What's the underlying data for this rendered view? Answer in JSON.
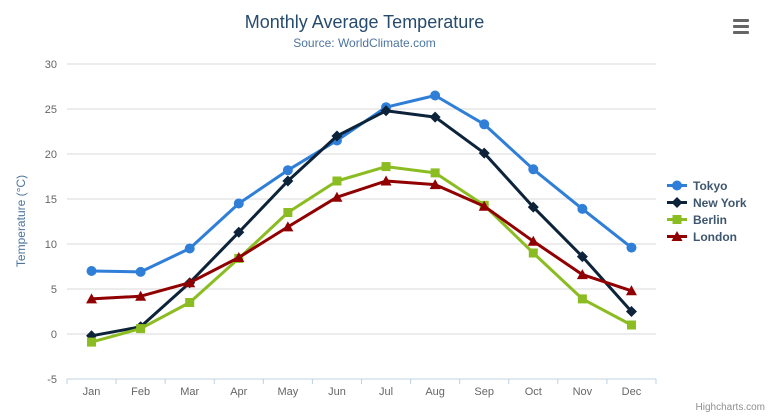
{
  "header": {
    "title": "Monthly Average Temperature",
    "subtitle": "Source: WorldClimate.com"
  },
  "icons": {
    "export_menu": "hamburger-menu-icon"
  },
  "credits_label": "Highcharts.com",
  "colors": {
    "title": "#274b6d",
    "subtitle": "#4d759e",
    "axis_title": "#4d759e",
    "tick_label": "#666666",
    "grid_line": "#d8d8d8",
    "axis_line": "#c0d0e0",
    "legend_text": "#3e576f",
    "credits": "#909090",
    "menu_icon": "#666666"
  },
  "chart_data": {
    "type": "line",
    "title": "Monthly Average Temperature",
    "subtitle": "Source: WorldClimate.com",
    "xlabel": "",
    "ylabel": "Temperature (°C)",
    "categories": [
      "Jan",
      "Feb",
      "Mar",
      "Apr",
      "May",
      "Jun",
      "Jul",
      "Aug",
      "Sep",
      "Oct",
      "Nov",
      "Dec"
    ],
    "series": [
      {
        "name": "Tokyo",
        "color": "#2f7ed8",
        "marker": "circle",
        "values": [
          7.0,
          6.9,
          9.5,
          14.5,
          18.2,
          21.5,
          25.2,
          26.5,
          23.3,
          18.3,
          13.9,
          9.6
        ]
      },
      {
        "name": "New York",
        "color": "#0d233a",
        "marker": "diamond",
        "values": [
          -0.2,
          0.8,
          5.7,
          11.3,
          17.0,
          22.0,
          24.8,
          24.1,
          20.1,
          14.1,
          8.6,
          2.5
        ]
      },
      {
        "name": "Berlin",
        "color": "#8bbc21",
        "marker": "square",
        "values": [
          -0.9,
          0.6,
          3.5,
          8.4,
          13.5,
          17.0,
          18.6,
          17.9,
          14.3,
          9.0,
          3.9,
          1.0
        ]
      },
      {
        "name": "London",
        "color": "#910000",
        "marker": "triangle",
        "values": [
          3.9,
          4.2,
          5.7,
          8.5,
          11.9,
          15.2,
          17.0,
          16.6,
          14.2,
          10.3,
          6.6,
          4.8
        ]
      }
    ],
    "ylim": [
      -5,
      30
    ],
    "ytick_step": 5,
    "grid": true,
    "legend_position": "right"
  }
}
